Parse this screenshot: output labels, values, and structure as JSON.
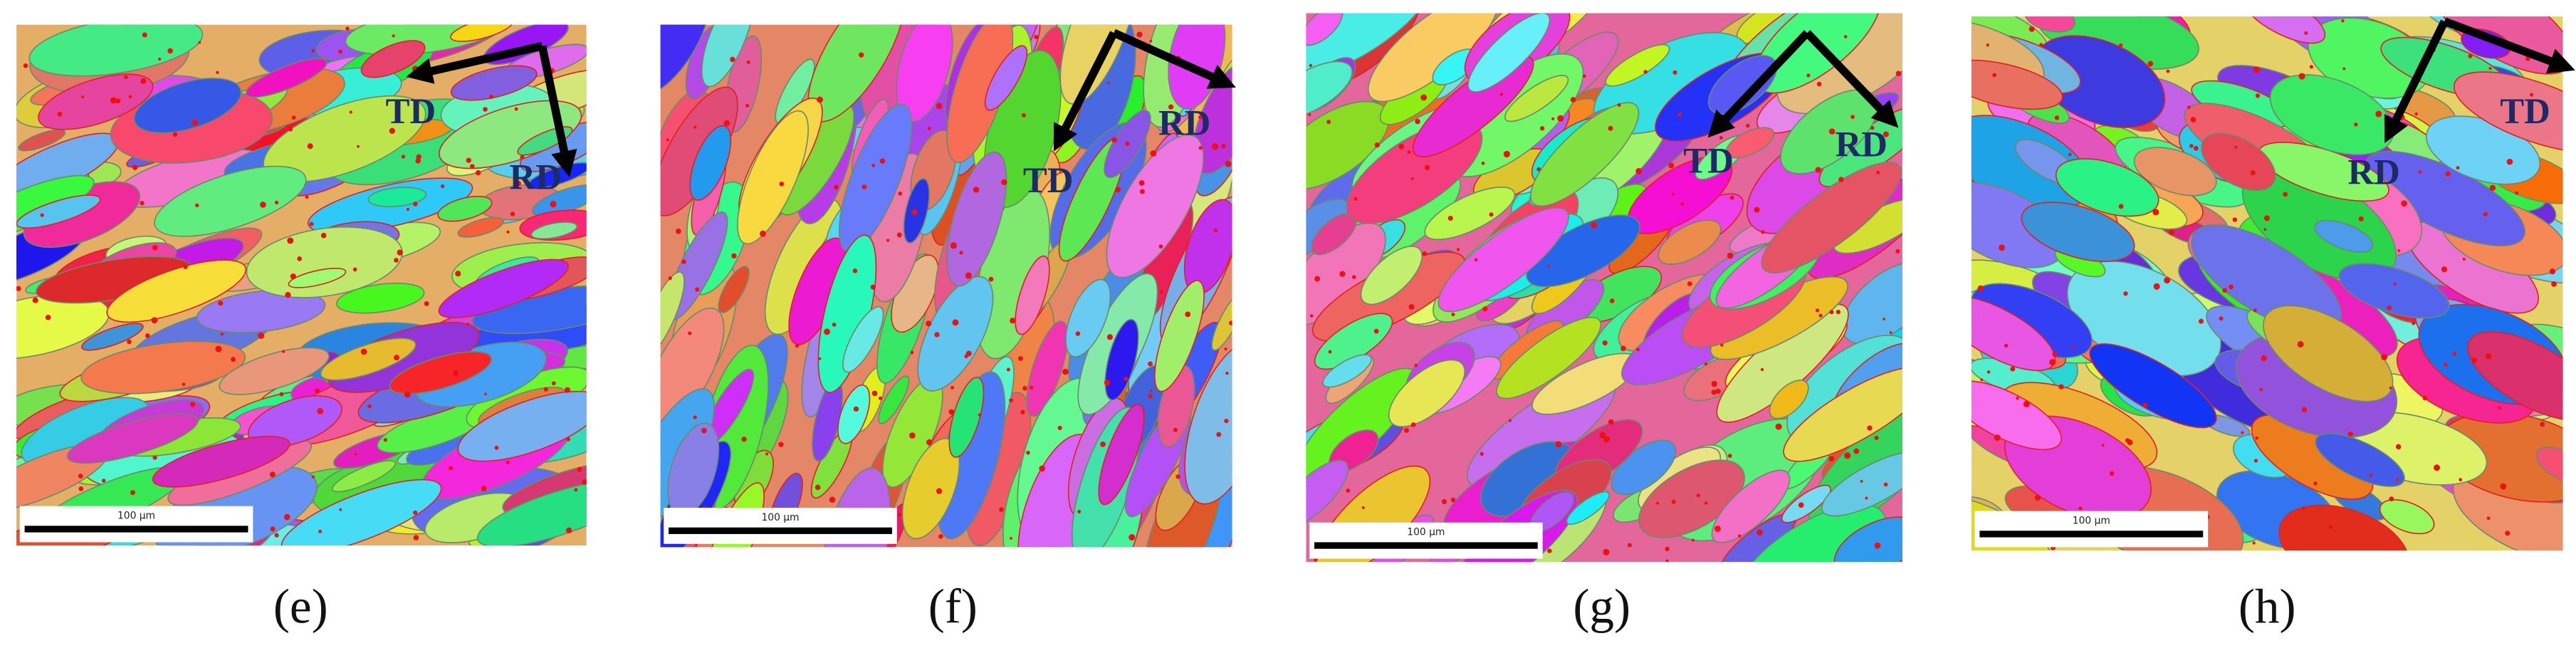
{
  "panels": [
    {
      "caption": "(e)",
      "td": "TD",
      "rd": "RD",
      "scale_bar": "100 µm"
    },
    {
      "caption": "(f)",
      "td": "TD",
      "rd": "RD",
      "scale_bar": "100 µm"
    },
    {
      "caption": "(g)",
      "td": "TD",
      "rd": "RD",
      "scale_bar": "100 µm"
    },
    {
      "caption": "(h)",
      "td": "TD",
      "rd": "RD",
      "scale_bar": "100 µm"
    }
  ]
}
